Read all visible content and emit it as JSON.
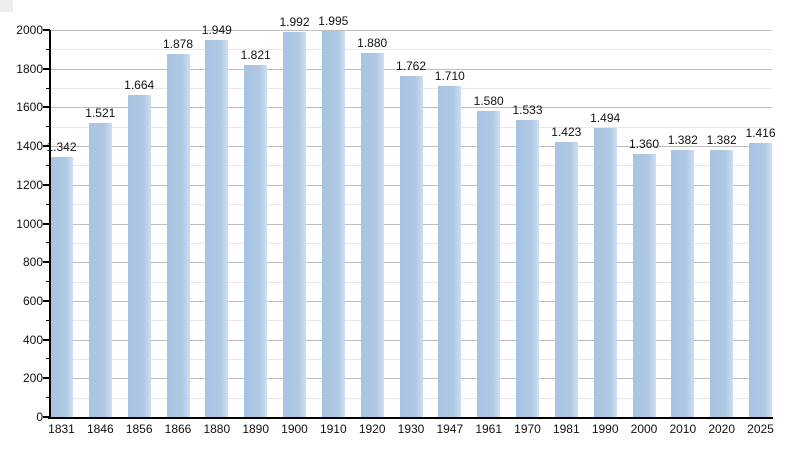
{
  "chart_data": {
    "type": "bar",
    "title": "",
    "xlabel": "",
    "ylabel": "",
    "categories": [
      "1831",
      "1846",
      "1856",
      "1866",
      "1880",
      "1890",
      "1900",
      "1910",
      "1920",
      "1930",
      "1947",
      "1961",
      "1970",
      "1981",
      "1990",
      "2000",
      "2010",
      "2020",
      "2025"
    ],
    "values": [
      1342,
      1521,
      1664,
      1878,
      1949,
      1821,
      1992,
      1995,
      1880,
      1762,
      1710,
      1580,
      1533,
      1423,
      1494,
      1360,
      1382,
      1382,
      1416
    ],
    "value_labels": [
      "1.342",
      "1.521",
      "1.664",
      "1.878",
      "1.949",
      "1.821",
      "1.992",
      "1.995",
      "1.880",
      "1.762",
      "1.710",
      "1.580",
      "1.533",
      "1.423",
      "1.494",
      "1.360",
      "1.382",
      "1.382",
      "1.416"
    ],
    "ylim": [
      0,
      2000
    ],
    "y_major_step": 200,
    "y_minor_step": 100,
    "y_tick_labels": [
      "0",
      "200",
      "400",
      "600",
      "800",
      "1000",
      "1200",
      "1400",
      "1600",
      "1800",
      "2000"
    ],
    "grid": "on",
    "legend": "none",
    "colors": {
      "bar_left": "#a6c3e1",
      "bar_mid": "#afc9e4",
      "bar_right": "#cddff0",
      "grid_major": "#bdbdbd",
      "grid_minor": "#e8e8e8",
      "axis": "#000000",
      "text": "#111111",
      "background": "#ffffff",
      "corner_artifact": "#ededed"
    }
  }
}
